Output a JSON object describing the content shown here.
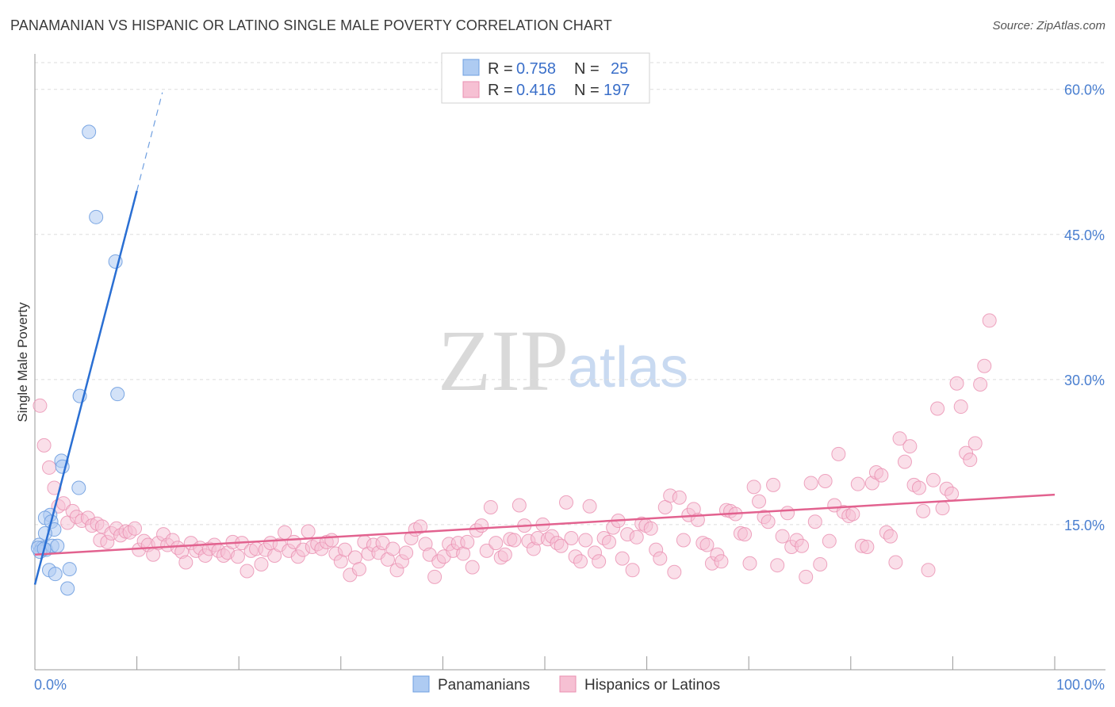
{
  "title": "PANAMANIAN VS HISPANIC OR LATINO SINGLE MALE POVERTY CORRELATION CHART",
  "source": "Source: ZipAtlas.com",
  "watermark": {
    "zip": "ZIP",
    "atlas": "atlas"
  },
  "colors": {
    "blue_fill": "#aecbf2",
    "blue_stroke": "#6f9fe0",
    "blue_line": "#2a6fd3",
    "pink_fill": "#f6c0d3",
    "pink_stroke": "#ea8fb0",
    "pink_line": "#e2628f",
    "axis_label": "#4a7fd0",
    "grid": "#dddddd"
  },
  "legend": {
    "r_label": "R =",
    "n_label": "N =",
    "blue": {
      "r": "0.758",
      "n": "25"
    },
    "pink": {
      "r": "0.416",
      "n": "197"
    }
  },
  "bottom_legend": {
    "blue": "Panamanians",
    "pink": "Hispanics or Latinos"
  },
  "chart_data": {
    "type": "scatter",
    "title": "PANAMANIAN VS HISPANIC OR LATINO SINGLE MALE POVERTY CORRELATION CHART",
    "xlabel": "",
    "ylabel": "Single Male Poverty",
    "xlim": [
      0,
      100
    ],
    "ylim": [
      0,
      63.5
    ],
    "x_tick_labels": [
      "0.0%",
      "100.0%"
    ],
    "y_ticks": [
      15,
      30,
      45,
      60
    ],
    "y_tick_labels": [
      "15.0%",
      "30.0%",
      "45.0%",
      "60.0%"
    ],
    "grid": true,
    "series": [
      {
        "name": "Panamanians",
        "color": "blue",
        "regression": {
          "x0": 0,
          "y0": 8.8,
          "x1": 10,
          "y1": 49.5,
          "dash_to_x": 12.5
        },
        "points": [
          [
            5.3,
            55.6
          ],
          [
            6.0,
            46.8
          ],
          [
            7.9,
            42.2
          ],
          [
            4.4,
            28.3
          ],
          [
            8.1,
            28.5
          ],
          [
            2.6,
            21.6
          ],
          [
            2.7,
            21.0
          ],
          [
            4.3,
            18.8
          ],
          [
            1.5,
            16.0
          ],
          [
            1.0,
            15.7
          ],
          [
            1.6,
            15.3
          ],
          [
            1.9,
            14.5
          ],
          [
            1.0,
            14.1
          ],
          [
            0.4,
            12.9
          ],
          [
            0.7,
            12.6
          ],
          [
            1.1,
            12.4
          ],
          [
            0.5,
            12.2
          ],
          [
            1.7,
            12.8
          ],
          [
            2.2,
            12.8
          ],
          [
            0.3,
            12.6
          ],
          [
            1.4,
            10.3
          ],
          [
            3.4,
            10.4
          ],
          [
            2.0,
            9.9
          ],
          [
            3.2,
            8.4
          ],
          [
            0.9,
            12.5
          ]
        ]
      },
      {
        "name": "Hispanics or Latinos",
        "color": "pink",
        "regression": {
          "x0": 0,
          "y0": 11.9,
          "x1": 100,
          "y1": 18.1
        },
        "points": [
          [
            0.5,
            27.3
          ],
          [
            0.9,
            23.2
          ],
          [
            1.4,
            20.9
          ],
          [
            1.9,
            18.8
          ],
          [
            2.3,
            16.9
          ],
          [
            2.8,
            17.2
          ],
          [
            3.2,
            15.2
          ],
          [
            3.7,
            16.4
          ],
          [
            4.1,
            15.8
          ],
          [
            4.6,
            15.4
          ],
          [
            5.2,
            15.7
          ],
          [
            5.6,
            14.9
          ],
          [
            6.1,
            15.1
          ],
          [
            6.6,
            14.8
          ],
          [
            6.4,
            13.4
          ],
          [
            7.1,
            13.2
          ],
          [
            7.5,
            14.1
          ],
          [
            8.0,
            14.6
          ],
          [
            8.4,
            13.9
          ],
          [
            8.9,
            14.3
          ],
          [
            9.3,
            14.2
          ],
          [
            9.8,
            14.6
          ],
          [
            10.2,
            12.4
          ],
          [
            10.7,
            13.3
          ],
          [
            11.1,
            12.9
          ],
          [
            11.6,
            11.9
          ],
          [
            12.1,
            13.1
          ],
          [
            12.6,
            14.0
          ],
          [
            13.0,
            12.9
          ],
          [
            13.5,
            13.4
          ],
          [
            14.0,
            12.6
          ],
          [
            14.4,
            12.2
          ],
          [
            14.8,
            11.1
          ],
          [
            15.3,
            13.1
          ],
          [
            15.8,
            12.3
          ],
          [
            16.2,
            12.6
          ],
          [
            16.7,
            11.8
          ],
          [
            17.1,
            12.5
          ],
          [
            17.6,
            12.9
          ],
          [
            18.0,
            12.3
          ],
          [
            18.5,
            11.8
          ],
          [
            18.9,
            12.1
          ],
          [
            19.4,
            13.2
          ],
          [
            19.9,
            11.7
          ],
          [
            20.3,
            13.1
          ],
          [
            20.8,
            10.2
          ],
          [
            21.2,
            12.3
          ],
          [
            21.7,
            12.5
          ],
          [
            22.2,
            10.9
          ],
          [
            22.6,
            12.4
          ],
          [
            23.1,
            13.1
          ],
          [
            23.5,
            11.8
          ],
          [
            24.0,
            12.9
          ],
          [
            24.5,
            14.2
          ],
          [
            24.9,
            12.3
          ],
          [
            25.4,
            13.2
          ],
          [
            25.8,
            11.7
          ],
          [
            26.3,
            12.4
          ],
          [
            26.8,
            14.3
          ],
          [
            27.2,
            12.7
          ],
          [
            27.7,
            13.0
          ],
          [
            28.1,
            12.5
          ],
          [
            28.6,
            13.2
          ],
          [
            29.1,
            13.4
          ],
          [
            29.5,
            12.0
          ],
          [
            30.0,
            11.2
          ],
          [
            30.4,
            12.4
          ],
          [
            30.9,
            9.8
          ],
          [
            31.4,
            11.6
          ],
          [
            31.8,
            10.4
          ],
          [
            32.3,
            13.2
          ],
          [
            32.7,
            12.0
          ],
          [
            33.2,
            12.9
          ],
          [
            33.7,
            12.1
          ],
          [
            34.1,
            13.1
          ],
          [
            34.6,
            11.4
          ],
          [
            35.1,
            12.5
          ],
          [
            35.5,
            10.3
          ],
          [
            36.0,
            11.2
          ],
          [
            36.4,
            12.1
          ],
          [
            36.9,
            13.6
          ],
          [
            37.3,
            14.5
          ],
          [
            37.8,
            14.8
          ],
          [
            38.3,
            13.0
          ],
          [
            38.7,
            11.9
          ],
          [
            39.2,
            9.6
          ],
          [
            39.6,
            11.2
          ],
          [
            40.1,
            11.7
          ],
          [
            40.6,
            13.0
          ],
          [
            41.0,
            12.3
          ],
          [
            41.5,
            13.1
          ],
          [
            42.0,
            12.0
          ],
          [
            42.4,
            13.2
          ],
          [
            42.9,
            10.6
          ],
          [
            43.3,
            14.4
          ],
          [
            43.8,
            14.9
          ],
          [
            44.3,
            12.3
          ],
          [
            44.7,
            16.8
          ],
          [
            45.2,
            13.1
          ],
          [
            45.7,
            11.6
          ],
          [
            46.1,
            11.9
          ],
          [
            46.6,
            13.5
          ],
          [
            47.0,
            13.4
          ],
          [
            47.5,
            17.0
          ],
          [
            48.0,
            14.9
          ],
          [
            48.4,
            13.3
          ],
          [
            48.9,
            12.5
          ],
          [
            49.3,
            13.6
          ],
          [
            49.8,
            15.0
          ],
          [
            50.3,
            13.5
          ],
          [
            50.7,
            13.8
          ],
          [
            51.2,
            13.1
          ],
          [
            51.6,
            12.8
          ],
          [
            52.1,
            17.3
          ],
          [
            52.6,
            13.6
          ],
          [
            53.0,
            11.7
          ],
          [
            53.5,
            11.2
          ],
          [
            54.0,
            13.4
          ],
          [
            54.4,
            16.9
          ],
          [
            54.9,
            12.1
          ],
          [
            55.3,
            11.2
          ],
          [
            55.8,
            13.6
          ],
          [
            56.3,
            13.2
          ],
          [
            56.7,
            14.7
          ],
          [
            57.2,
            15.4
          ],
          [
            57.6,
            11.5
          ],
          [
            58.1,
            14.0
          ],
          [
            58.6,
            10.3
          ],
          [
            59.0,
            13.7
          ],
          [
            59.5,
            15.1
          ],
          [
            59.9,
            14.9
          ],
          [
            60.4,
            14.6
          ],
          [
            60.9,
            12.4
          ],
          [
            61.3,
            11.5
          ],
          [
            61.8,
            16.8
          ],
          [
            62.3,
            18.0
          ],
          [
            62.7,
            10.1
          ],
          [
            63.2,
            17.8
          ],
          [
            63.6,
            13.4
          ],
          [
            64.1,
            16.0
          ],
          [
            64.6,
            16.6
          ],
          [
            65.0,
            15.5
          ],
          [
            65.5,
            13.1
          ],
          [
            65.9,
            12.9
          ],
          [
            66.4,
            11.0
          ],
          [
            66.9,
            11.9
          ],
          [
            67.3,
            11.2
          ],
          [
            67.8,
            16.5
          ],
          [
            68.2,
            16.4
          ],
          [
            68.7,
            16.1
          ],
          [
            69.2,
            14.1
          ],
          [
            69.6,
            14.0
          ],
          [
            70.1,
            11.0
          ],
          [
            70.5,
            18.9
          ],
          [
            71.0,
            17.4
          ],
          [
            71.5,
            15.8
          ],
          [
            71.9,
            15.3
          ],
          [
            72.4,
            19.1
          ],
          [
            72.8,
            10.8
          ],
          [
            73.3,
            13.8
          ],
          [
            73.8,
            16.2
          ],
          [
            74.2,
            12.7
          ],
          [
            74.7,
            13.4
          ],
          [
            75.2,
            12.8
          ],
          [
            75.6,
            9.6
          ],
          [
            76.1,
            19.3
          ],
          [
            76.5,
            15.3
          ],
          [
            77.0,
            10.9
          ],
          [
            77.5,
            19.5
          ],
          [
            77.9,
            13.3
          ],
          [
            78.4,
            17.0
          ],
          [
            78.8,
            22.3
          ],
          [
            79.3,
            16.3
          ],
          [
            79.8,
            15.9
          ],
          [
            80.2,
            16.1
          ],
          [
            80.7,
            19.2
          ],
          [
            81.1,
            12.8
          ],
          [
            81.6,
            12.7
          ],
          [
            82.1,
            19.3
          ],
          [
            82.5,
            20.4
          ],
          [
            83.0,
            20.1
          ],
          [
            83.5,
            14.2
          ],
          [
            83.9,
            13.8
          ],
          [
            84.4,
            11.1
          ],
          [
            84.8,
            23.9
          ],
          [
            85.3,
            21.5
          ],
          [
            85.8,
            23.1
          ],
          [
            86.2,
            19.1
          ],
          [
            86.7,
            18.8
          ],
          [
            87.1,
            16.4
          ],
          [
            87.6,
            10.3
          ],
          [
            88.1,
            19.6
          ],
          [
            88.5,
            27.0
          ],
          [
            89.0,
            16.7
          ],
          [
            89.4,
            18.7
          ],
          [
            89.9,
            18.2
          ],
          [
            90.4,
            29.6
          ],
          [
            90.8,
            27.2
          ],
          [
            91.3,
            22.4
          ],
          [
            91.7,
            21.7
          ],
          [
            92.2,
            23.4
          ],
          [
            92.7,
            29.5
          ],
          [
            93.1,
            31.4
          ],
          [
            93.6,
            36.1
          ]
        ]
      }
    ]
  }
}
